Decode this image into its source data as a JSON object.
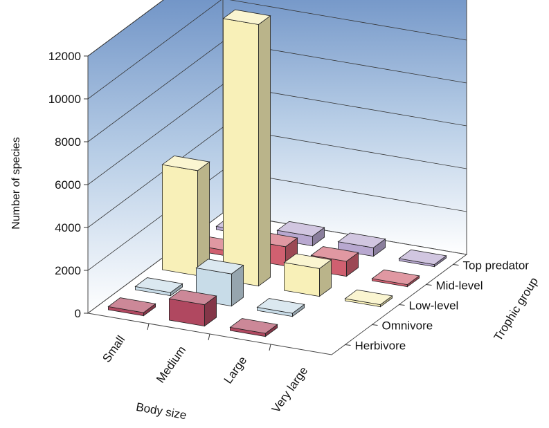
{
  "chart_data": {
    "type": "bar3d",
    "title": "",
    "ylabel": "Number of species",
    "xlabel": "Body size",
    "zlabel": "Trophic group",
    "ylim": [
      0,
      12000
    ],
    "yticks": [
      "0",
      "2000",
      "4000",
      "6000",
      "8000",
      "10000",
      "12000"
    ],
    "categories": [
      "Small",
      "Medium",
      "Large",
      "Very large"
    ],
    "series": [
      {
        "name": "Herbivore",
        "color": "#b04860",
        "values": [
          150,
          1000,
          150,
          0
        ]
      },
      {
        "name": "Omnivore",
        "color": "#c8dce8",
        "values": [
          150,
          1500,
          150,
          0
        ]
      },
      {
        "name": "Low-level",
        "color": "#f8f0b8",
        "values": [
          4900,
          12200,
          1300,
          100
        ]
      },
      {
        "name": "Mid-level",
        "color": "#d06070",
        "values": [
          250,
          900,
          700,
          100
        ]
      },
      {
        "name": "Top predator",
        "color": "#b8a8d0",
        "values": [
          150,
          450,
          400,
          100
        ]
      }
    ],
    "grid": true
  }
}
